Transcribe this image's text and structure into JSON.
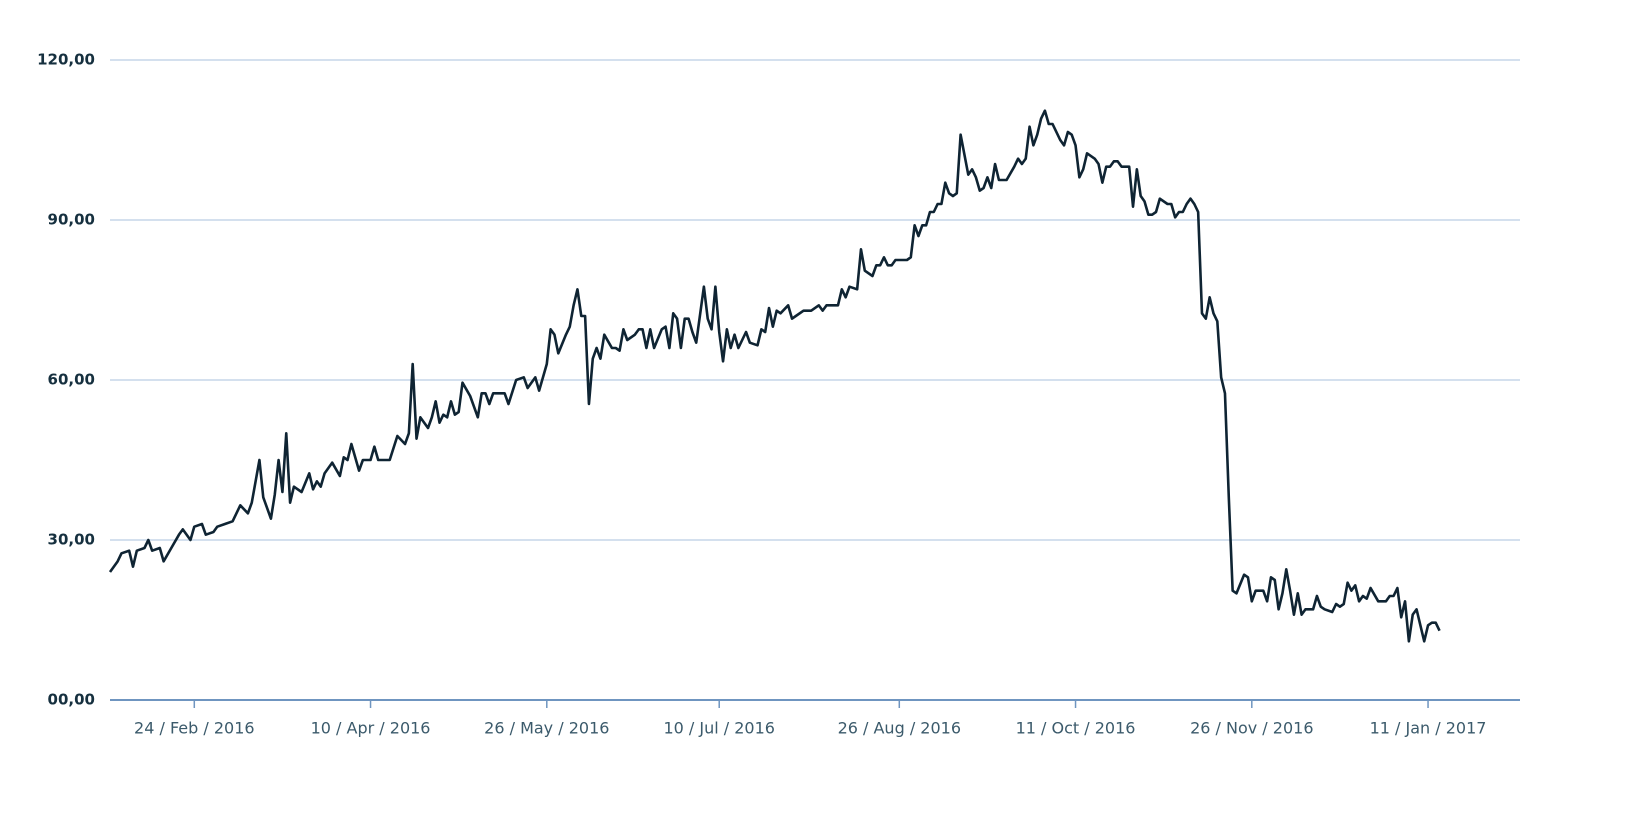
{
  "chart_data": {
    "type": "line",
    "x": [
      "2016-02-02",
      "2016-02-04",
      "2016-02-05",
      "2016-02-07",
      "2016-02-08",
      "2016-02-09",
      "2016-02-11",
      "2016-02-12",
      "2016-02-13",
      "2016-02-15",
      "2016-02-16",
      "2016-02-18",
      "2016-02-20",
      "2016-02-21",
      "2016-02-23",
      "2016-02-24",
      "2016-02-26",
      "2016-02-27",
      "2016-02-29",
      "2016-03-01",
      "2016-03-03",
      "2016-03-05",
      "2016-03-07",
      "2016-03-09",
      "2016-03-10",
      "2016-03-12",
      "2016-03-13",
      "2016-03-15",
      "2016-03-16",
      "2016-03-17",
      "2016-03-18",
      "2016-03-19",
      "2016-03-20",
      "2016-03-21",
      "2016-03-23",
      "2016-03-25",
      "2016-03-26",
      "2016-03-27",
      "2016-03-28",
      "2016-03-29",
      "2016-03-31",
      "2016-04-02",
      "2016-04-03",
      "2016-04-04",
      "2016-04-05",
      "2016-04-07",
      "2016-04-08",
      "2016-04-10",
      "2016-04-11",
      "2016-04-12",
      "2016-04-15",
      "2016-04-17",
      "2016-04-19",
      "2016-04-20",
      "2016-04-21",
      "2016-04-22",
      "2016-04-23",
      "2016-04-25",
      "2016-04-26",
      "2016-04-27",
      "2016-04-28",
      "2016-04-29",
      "2016-04-30",
      "2016-05-01",
      "2016-05-02",
      "2016-05-03",
      "2016-05-04",
      "2016-05-06",
      "2016-05-08",
      "2016-05-09",
      "2016-05-10",
      "2016-05-11",
      "2016-05-12",
      "2016-05-13",
      "2016-05-15",
      "2016-05-16",
      "2016-05-18",
      "2016-05-20",
      "2016-05-21",
      "2016-05-23",
      "2016-05-24",
      "2016-05-25",
      "2016-05-26",
      "2016-05-27",
      "2016-05-28",
      "2016-05-29",
      "2016-05-31",
      "2016-06-01",
      "2016-06-02",
      "2016-06-03",
      "2016-06-04",
      "2016-06-05",
      "2016-06-06",
      "2016-06-07",
      "2016-06-08",
      "2016-06-09",
      "2016-06-10",
      "2016-06-12",
      "2016-06-13",
      "2016-06-14",
      "2016-06-15",
      "2016-06-16",
      "2016-06-18",
      "2016-06-19",
      "2016-06-20",
      "2016-06-21",
      "2016-06-22",
      "2016-06-23",
      "2016-06-25",
      "2016-06-26",
      "2016-06-27",
      "2016-06-28",
      "2016-06-29",
      "2016-06-30",
      "2016-07-01",
      "2016-07-02",
      "2016-07-03",
      "2016-07-04",
      "2016-07-06",
      "2016-07-07",
      "2016-07-08",
      "2016-07-09",
      "2016-07-10",
      "2016-07-11",
      "2016-07-12",
      "2016-07-13",
      "2016-07-14",
      "2016-07-15",
      "2016-07-17",
      "2016-07-18",
      "2016-07-20",
      "2016-07-21",
      "2016-07-22",
      "2016-07-23",
      "2016-07-24",
      "2016-07-25",
      "2016-07-26",
      "2016-07-28",
      "2016-07-29",
      "2016-07-30",
      "2016-08-01",
      "2016-08-03",
      "2016-08-05",
      "2016-08-06",
      "2016-08-07",
      "2016-08-10",
      "2016-08-11",
      "2016-08-12",
      "2016-08-13",
      "2016-08-15",
      "2016-08-16",
      "2016-08-17",
      "2016-08-19",
      "2016-08-20",
      "2016-08-21",
      "2016-08-22",
      "2016-08-23",
      "2016-08-24",
      "2016-08-25",
      "2016-08-28",
      "2016-08-29",
      "2016-08-30",
      "2016-08-31",
      "2016-09-01",
      "2016-09-02",
      "2016-09-03",
      "2016-09-04",
      "2016-09-05",
      "2016-09-06",
      "2016-09-07",
      "2016-09-08",
      "2016-09-09",
      "2016-09-10",
      "2016-09-11",
      "2016-09-13",
      "2016-09-14",
      "2016-09-15",
      "2016-09-16",
      "2016-09-17",
      "2016-09-18",
      "2016-09-19",
      "2016-09-20",
      "2016-09-21",
      "2016-09-23",
      "2016-09-25",
      "2016-09-26",
      "2016-09-27",
      "2016-09-28",
      "2016-09-29",
      "2016-09-30",
      "2016-10-01",
      "2016-10-02",
      "2016-10-03",
      "2016-10-04",
      "2016-10-05",
      "2016-10-07",
      "2016-10-08",
      "2016-10-09",
      "2016-10-10",
      "2016-10-11",
      "2016-10-12",
      "2016-10-13",
      "2016-10-14",
      "2016-10-16",
      "2016-10-17",
      "2016-10-18",
      "2016-10-19",
      "2016-10-20",
      "2016-10-21",
      "2016-10-22",
      "2016-10-23",
      "2016-10-25",
      "2016-10-26",
      "2016-10-27",
      "2016-10-28",
      "2016-10-29",
      "2016-10-30",
      "2016-10-31",
      "2016-11-01",
      "2016-11-02",
      "2016-11-04",
      "2016-11-05",
      "2016-11-06",
      "2016-11-07",
      "2016-11-08",
      "2016-11-09",
      "2016-11-10",
      "2016-11-11",
      "2016-11-12",
      "2016-11-13",
      "2016-11-14",
      "2016-11-15",
      "2016-11-16",
      "2016-11-17",
      "2016-11-18",
      "2016-11-19",
      "2016-11-20",
      "2016-11-21",
      "2016-11-22",
      "2016-11-24",
      "2016-11-25",
      "2016-11-26",
      "2016-11-27",
      "2016-11-29",
      "2016-11-30",
      "2016-12-01",
      "2016-12-02",
      "2016-12-03",
      "2016-12-04",
      "2016-12-05",
      "2016-12-06",
      "2016-12-07",
      "2016-12-08",
      "2016-12-09",
      "2016-12-10",
      "2016-12-12",
      "2016-12-13",
      "2016-12-14",
      "2016-12-15",
      "2016-12-17",
      "2016-12-18",
      "2016-12-19",
      "2016-12-20",
      "2016-12-21",
      "2016-12-22",
      "2016-12-23",
      "2016-12-24",
      "2016-12-25",
      "2016-12-26",
      "2016-12-27",
      "2016-12-29",
      "2016-12-31",
      "2017-01-01",
      "2017-01-02",
      "2017-01-03",
      "2017-01-04",
      "2017-01-05",
      "2017-01-06",
      "2017-01-07",
      "2017-01-08",
      "2017-01-09",
      "2017-01-10",
      "2017-01-11",
      "2017-01-12",
      "2017-01-13",
      "2017-01-14"
    ],
    "values": [
      24,
      26,
      27.5,
      28,
      25,
      28,
      28.5,
      30,
      28,
      28.5,
      26,
      28.5,
      31,
      32,
      30,
      32.5,
      33,
      31,
      31.5,
      32.5,
      33,
      33.5,
      36.5,
      35,
      37,
      45,
      38,
      34,
      38.5,
      45,
      39,
      50,
      37,
      40,
      39,
      42.5,
      39.5,
      41,
      40,
      42.5,
      44.5,
      42,
      45.5,
      45,
      48,
      43,
      45,
      45,
      47.5,
      45,
      45,
      49.5,
      48,
      50,
      63,
      49,
      53,
      51,
      53,
      56,
      52,
      53.5,
      53,
      56,
      53.5,
      54,
      59.5,
      57,
      53,
      57.5,
      57.5,
      55.5,
      57.5,
      57.5,
      57.5,
      55.5,
      60,
      60.5,
      58.5,
      60.5,
      58,
      60.5,
      63,
      69.5,
      68.5,
      65,
      68.5,
      70,
      74,
      77,
      72,
      72,
      55.5,
      64,
      66,
      64,
      68.5,
      66,
      66,
      65.5,
      69.5,
      67.5,
      68.5,
      69.5,
      69.5,
      66,
      69.5,
      66,
      69.5,
      70,
      66,
      72.5,
      71.5,
      66,
      71.5,
      71.5,
      69,
      67,
      77.5,
      71.5,
      69.5,
      77.5,
      69,
      63.5,
      69.5,
      66,
      68.5,
      66,
      69,
      67,
      66.5,
      69.5,
      69,
      73.5,
      70,
      73,
      72.5,
      74,
      71.5,
      72,
      73,
      73,
      74,
      73,
      74,
      74,
      77,
      75.5,
      77.5,
      77,
      84.5,
      80.5,
      79.5,
      81.5,
      81.5,
      83,
      81.5,
      81.5,
      82.5,
      82.5,
      83,
      89,
      87,
      89,
      89,
      91.5,
      91.5,
      93,
      93,
      97,
      95,
      94.5,
      95,
      106,
      98.5,
      99.5,
      98,
      95.5,
      96,
      98,
      96,
      100.5,
      97.5,
      97.5,
      100,
      101.5,
      100.5,
      101.5,
      107.5,
      104,
      106,
      109,
      110.5,
      108,
      108,
      105,
      104,
      106.5,
      106,
      104,
      98,
      99.5,
      102.5,
      101.5,
      100.5,
      97,
      100,
      100,
      101,
      101,
      100,
      100,
      92.5,
      99.5,
      94.5,
      93.5,
      91,
      91,
      91.5,
      94,
      93,
      93,
      90.5,
      91.5,
      91.5,
      93,
      94,
      93,
      91.5,
      72.5,
      71.5,
      75.5,
      72.5,
      71,
      60.5,
      57.5,
      38,
      20.5,
      20,
      23.5,
      23,
      18.5,
      20.5,
      20.5,
      18.5,
      23,
      22.5,
      17,
      20,
      24.5,
      20.5,
      16,
      20,
      16,
      17,
      17,
      19.5,
      17.5,
      17,
      16.5,
      18,
      17.5,
      18,
      22,
      20.5,
      21.5,
      18.5,
      19.5,
      19,
      21,
      18.5,
      18.5,
      19.5,
      19.5,
      21,
      15.5,
      18.5,
      11,
      16,
      17,
      14,
      11,
      14,
      14.5,
      14.5,
      13
    ],
    "color": "#0f2433",
    "xlim": [
      "2016-02-02",
      "2017-02-04"
    ],
    "xticks": [
      {
        "value": "2016-02-24",
        "label": "24 / Feb / 2016"
      },
      {
        "value": "2016-04-10",
        "label": "10 / Apr / 2016"
      },
      {
        "value": "2016-05-26",
        "label": "26 / May / 2016"
      },
      {
        "value": "2016-07-10",
        "label": "10 / Jul / 2016"
      },
      {
        "value": "2016-08-26",
        "label": "26 / Aug / 2016"
      },
      {
        "value": "2016-10-11",
        "label": "11 / Oct / 2016"
      },
      {
        "value": "2016-11-26",
        "label": "26 / Nov / 2016"
      },
      {
        "value": "2017-01-11",
        "label": "11 / Jan / 2017"
      }
    ],
    "ylim": [
      0,
      120
    ],
    "yticks": [
      {
        "value": 0,
        "label": "00,00"
      },
      {
        "value": 30,
        "label": "30,00"
      },
      {
        "value": 60,
        "label": "60,00"
      },
      {
        "value": 90,
        "label": "90,00"
      },
      {
        "value": 120,
        "label": "120,00"
      }
    ],
    "grid": true
  }
}
